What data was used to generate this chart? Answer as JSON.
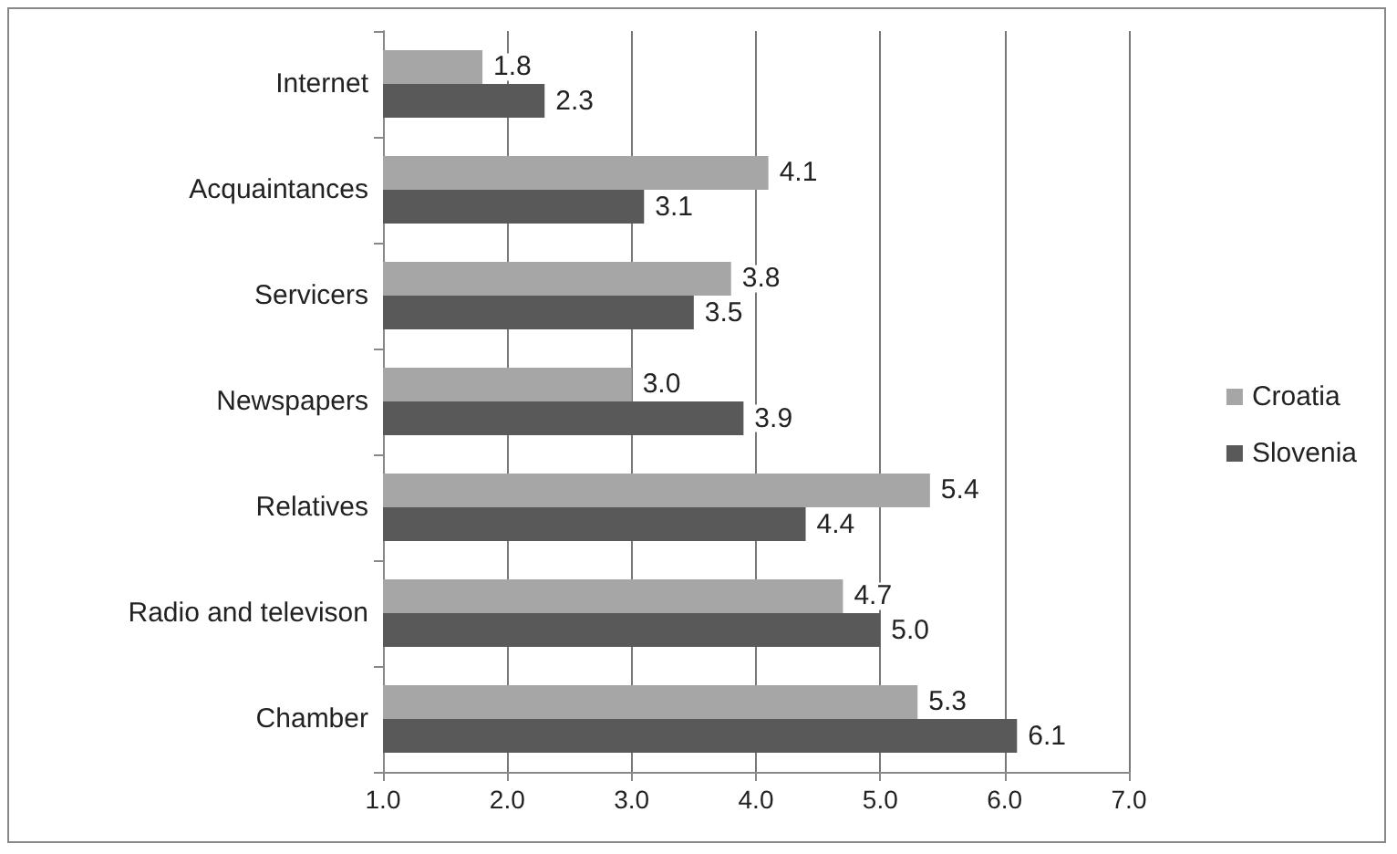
{
  "chart_data": {
    "type": "bar",
    "orientation": "horizontal",
    "categories": [
      "Internet",
      "Acquaintances",
      "Servicers",
      "Newspapers",
      "Relatives",
      "Radio and televison",
      "Chamber"
    ],
    "series": [
      {
        "name": "Croatia",
        "color": "#a6a6a6",
        "values": [
          1.8,
          4.1,
          3.8,
          3.0,
          5.4,
          4.7,
          5.3
        ],
        "value_labels": [
          "1.8",
          "4.1",
          "3.8",
          "3.0",
          "5.4",
          "4.7",
          "5.3"
        ]
      },
      {
        "name": "Slovenia",
        "color": "#595959",
        "values": [
          2.3,
          3.1,
          3.5,
          3.9,
          4.4,
          5.0,
          6.1
        ],
        "value_labels": [
          "2.3",
          "3.1",
          "3.5",
          "3.9",
          "4.4",
          "5.0",
          "6.1"
        ]
      }
    ],
    "xlim": [
      1,
      7
    ],
    "xticks": [
      {
        "value": 1,
        "label": "1.0"
      },
      {
        "value": 2,
        "label": "2.0"
      },
      {
        "value": 3,
        "label": "3.0"
      },
      {
        "value": 4,
        "label": "4.0"
      },
      {
        "value": 5,
        "label": "5.0"
      },
      {
        "value": 6,
        "label": "6.0"
      },
      {
        "value": 7,
        "label": "7.0"
      }
    ],
    "grid": "x",
    "legend": "right"
  }
}
